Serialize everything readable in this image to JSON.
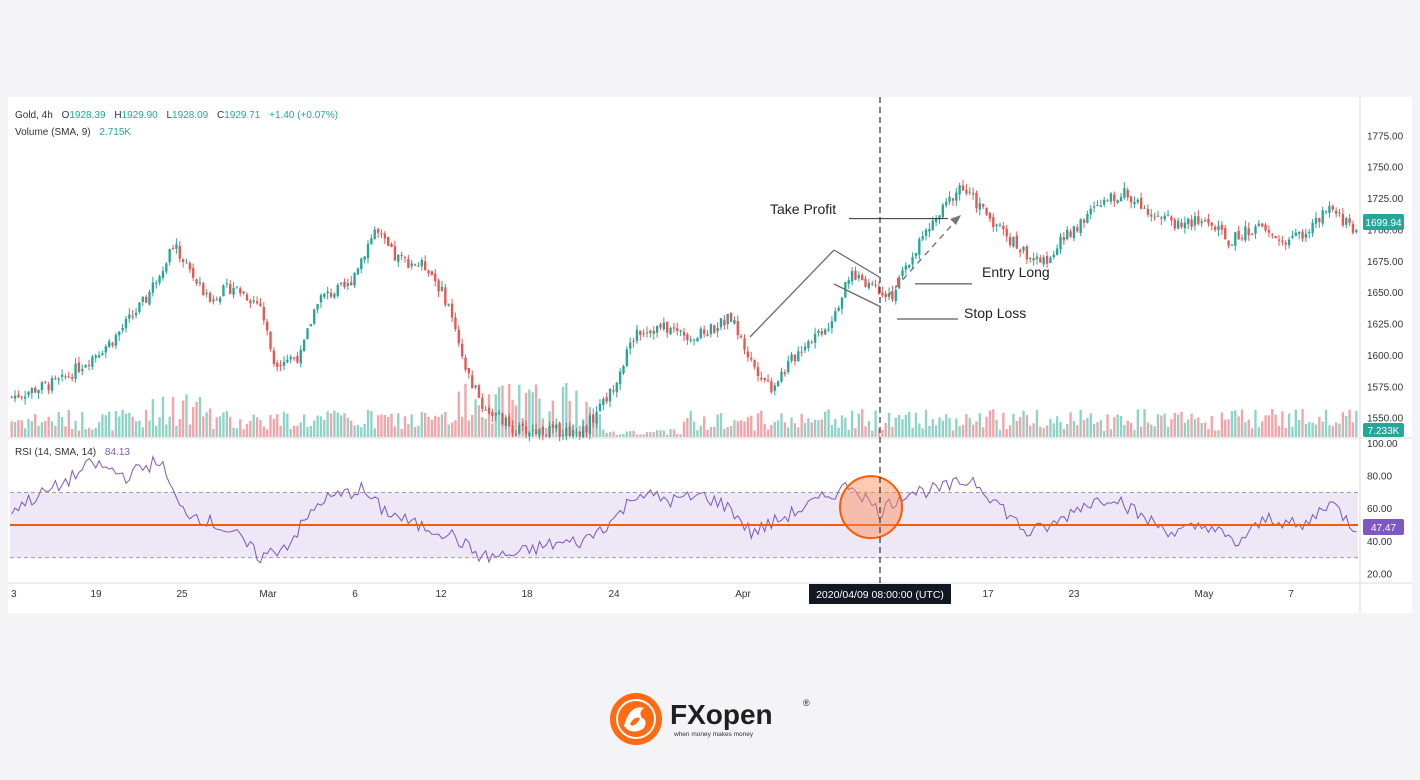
{
  "header": {
    "symbol": "Gold, 4h",
    "o_label": "O",
    "o_value": "1928.39",
    "h_label": "H",
    "h_value": "1929.90",
    "l_label": "L",
    "l_value": "1928.09",
    "c_label": "C",
    "c_value": "1929.71",
    "change": "+1.40 (+0.07%)",
    "volume_label": "Volume (SMA, 9)",
    "volume_value": "2.715K",
    "rsi_label": "RSI (14, SMA, 14)",
    "rsi_value": "84.13"
  },
  "annotations": {
    "take_profit": "Take Profit",
    "entry_long": "Entry Long",
    "stop_loss": "Stop Loss",
    "crosshair_time": "2020/04/09 08:00:00 (UTC)"
  },
  "price_badge": "1699.94",
  "volume_badge": "7.233K",
  "rsi_badge": "47.47",
  "colors": {
    "up": "#26a69a",
    "down": "#ef5350",
    "vol_up": "#8fd3c6",
    "vol_down": "#f5a3a8",
    "rsi_line": "#7e57c2",
    "rsi_band": "#ede7f6",
    "level_line": "#ff5a00",
    "highlight": "#ff8a50"
  },
  "logo": {
    "brand": "FXopen",
    "registered": "®",
    "tagline": "when money makes money"
  },
  "chart_data": [
    {
      "type": "candlestick",
      "title": "Gold, 4h",
      "y_ticks": [
        1550,
        1575,
        1600,
        1625,
        1650,
        1675,
        1700,
        1725,
        1750,
        1775
      ],
      "y_tick_labels": [
        "1550.00",
        "1575.00",
        "1600.00",
        "1625.00",
        "1650.00",
        "1675.00",
        "1700.00",
        "1725.00",
        "1750.00",
        "1775.00"
      ],
      "ylim": [
        1535,
        1790
      ],
      "x_tick_labels": [
        "3",
        "19",
        "25",
        "Mar",
        "6",
        "12",
        "18",
        "24",
        "Apr",
        "17",
        "23",
        "May",
        "7"
      ],
      "close_anchors": [
        {
          "i": 0,
          "v": 1567
        },
        {
          "i": 15,
          "v": 1580
        },
        {
          "i": 30,
          "v": 1612
        },
        {
          "i": 40,
          "v": 1645
        },
        {
          "i": 48,
          "v": 1688
        },
        {
          "i": 52,
          "v": 1672
        },
        {
          "i": 58,
          "v": 1645
        },
        {
          "i": 66,
          "v": 1655
        },
        {
          "i": 74,
          "v": 1640
        },
        {
          "i": 78,
          "v": 1595
        },
        {
          "i": 86,
          "v": 1600
        },
        {
          "i": 91,
          "v": 1645
        },
        {
          "i": 100,
          "v": 1655
        },
        {
          "i": 108,
          "v": 1700
        },
        {
          "i": 114,
          "v": 1678
        },
        {
          "i": 124,
          "v": 1670
        },
        {
          "i": 130,
          "v": 1640
        },
        {
          "i": 134,
          "v": 1595
        },
        {
          "i": 140,
          "v": 1560
        },
        {
          "i": 150,
          "v": 1540
        },
        {
          "i": 160,
          "v": 1540
        },
        {
          "i": 170,
          "v": 1540
        },
        {
          "i": 178,
          "v": 1570
        },
        {
          "i": 186,
          "v": 1620
        },
        {
          "i": 194,
          "v": 1622
        },
        {
          "i": 204,
          "v": 1615
        },
        {
          "i": 214,
          "v": 1630
        },
        {
          "i": 220,
          "v": 1595
        },
        {
          "i": 226,
          "v": 1575
        },
        {
          "i": 236,
          "v": 1610
        },
        {
          "i": 243,
          "v": 1625
        },
        {
          "i": 250,
          "v": 1665
        },
        {
          "i": 262,
          "v": 1648
        },
        {
          "i": 270,
          "v": 1690
        },
        {
          "i": 276,
          "v": 1712
        },
        {
          "i": 282,
          "v": 1735
        },
        {
          "i": 290,
          "v": 1713
        },
        {
          "i": 298,
          "v": 1690
        },
        {
          "i": 306,
          "v": 1672
        },
        {
          "i": 312,
          "v": 1690
        },
        {
          "i": 320,
          "v": 1712
        },
        {
          "i": 330,
          "v": 1730
        },
        {
          "i": 338,
          "v": 1717
        },
        {
          "i": 346,
          "v": 1705
        },
        {
          "i": 356,
          "v": 1707
        },
        {
          "i": 362,
          "v": 1690
        },
        {
          "i": 370,
          "v": 1703
        },
        {
          "i": 378,
          "v": 1690
        },
        {
          "i": 386,
          "v": 1700
        },
        {
          "i": 392,
          "v": 1716
        },
        {
          "i": 400,
          "v": 1700
        }
      ],
      "lines": [
        {
          "name": "Take Profit",
          "value": 1709
        },
        {
          "name": "Entry Long",
          "value": 1657
        },
        {
          "name": "Stop Loss",
          "value": 1629
        }
      ],
      "last_price": 1699.94
    },
    {
      "type": "bar",
      "title": "Volume (SMA, 9)",
      "last_value": "7.233K"
    },
    {
      "type": "line",
      "title": "RSI (14, SMA, 14)",
      "y_ticks": [
        20,
        40,
        60,
        80,
        100
      ],
      "y_tick_labels": [
        "20.00",
        "40.00",
        "60.00",
        "80.00",
        "100.00"
      ],
      "ylim": [
        15,
        101
      ],
      "band": [
        30,
        70
      ],
      "level_line": 50,
      "anchors": [
        {
          "i": 0,
          "v": 60
        },
        {
          "i": 15,
          "v": 75
        },
        {
          "i": 24,
          "v": 88
        },
        {
          "i": 34,
          "v": 80
        },
        {
          "i": 44,
          "v": 90
        },
        {
          "i": 50,
          "v": 60
        },
        {
          "i": 56,
          "v": 55
        },
        {
          "i": 66,
          "v": 45
        },
        {
          "i": 74,
          "v": 30
        },
        {
          "i": 82,
          "v": 38
        },
        {
          "i": 92,
          "v": 65
        },
        {
          "i": 104,
          "v": 72
        },
        {
          "i": 110,
          "v": 60
        },
        {
          "i": 120,
          "v": 50
        },
        {
          "i": 130,
          "v": 45
        },
        {
          "i": 140,
          "v": 30
        },
        {
          "i": 150,
          "v": 32
        },
        {
          "i": 160,
          "v": 38
        },
        {
          "i": 170,
          "v": 40
        },
        {
          "i": 180,
          "v": 55
        },
        {
          "i": 186,
          "v": 70
        },
        {
          "i": 196,
          "v": 65
        },
        {
          "i": 206,
          "v": 68
        },
        {
          "i": 214,
          "v": 60
        },
        {
          "i": 220,
          "v": 45
        },
        {
          "i": 230,
          "v": 55
        },
        {
          "i": 240,
          "v": 65
        },
        {
          "i": 250,
          "v": 75
        },
        {
          "i": 258,
          "v": 58
        },
        {
          "i": 266,
          "v": 70
        },
        {
          "i": 276,
          "v": 72
        },
        {
          "i": 286,
          "v": 78
        },
        {
          "i": 294,
          "v": 62
        },
        {
          "i": 302,
          "v": 45
        },
        {
          "i": 310,
          "v": 50
        },
        {
          "i": 318,
          "v": 62
        },
        {
          "i": 328,
          "v": 68
        },
        {
          "i": 336,
          "v": 55
        },
        {
          "i": 346,
          "v": 45
        },
        {
          "i": 356,
          "v": 50
        },
        {
          "i": 364,
          "v": 38
        },
        {
          "i": 374,
          "v": 55
        },
        {
          "i": 384,
          "v": 48
        },
        {
          "i": 392,
          "v": 65
        },
        {
          "i": 400,
          "v": 47
        }
      ],
      "last_value": 47.47
    }
  ]
}
